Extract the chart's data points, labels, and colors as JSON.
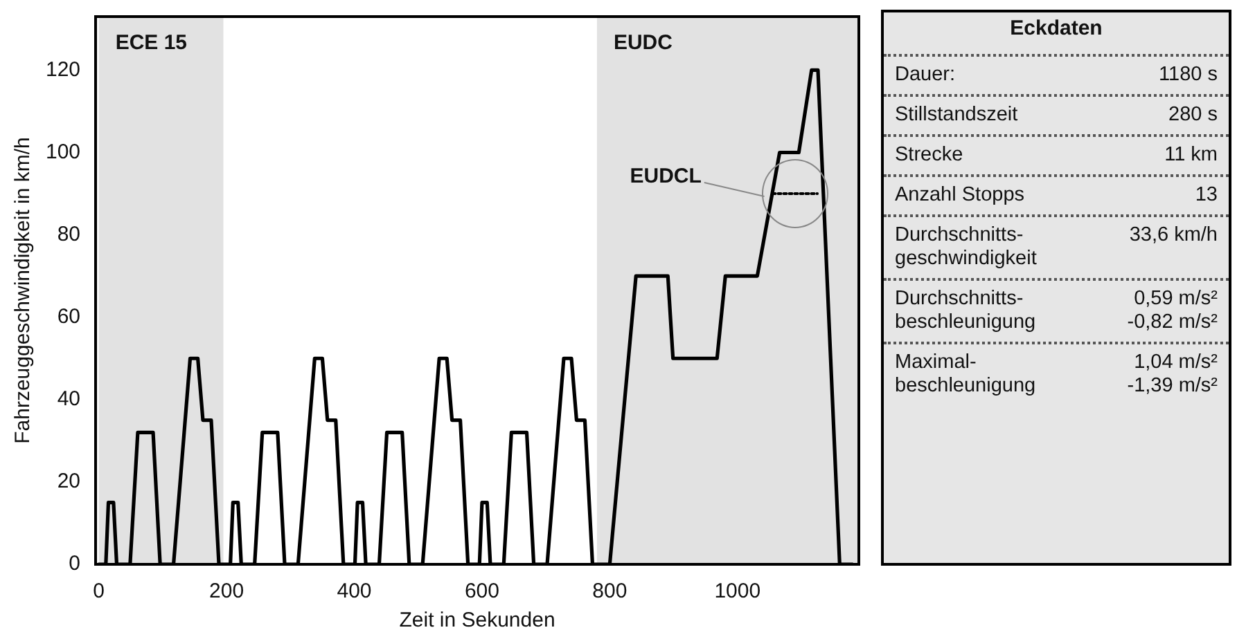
{
  "chart_data": [
    {
      "type": "line",
      "xlabel": "Zeit in Sekunden",
      "ylabel": "Fahrzeuggeschwindigkeit in km/h",
      "xlim": [
        -5,
        1190
      ],
      "xticks": [
        0,
        200,
        400,
        600,
        800,
        1000
      ],
      "ylim": [
        0,
        133
      ],
      "yticks": [
        0,
        20,
        40,
        60,
        80,
        100,
        120
      ],
      "legend": false,
      "marker": "none",
      "bands": [
        {
          "axis": "x",
          "from": 0,
          "to": 195,
          "label": "ECE 15",
          "color": "#e2e2e2"
        },
        {
          "axis": "x",
          "from": 780,
          "to": 1190,
          "label": "EUDC",
          "color": "#e2e2e2"
        }
      ],
      "series": [
        {
          "color": "#000000",
          "line_style": "solid",
          "x": [
            0,
            11,
            15,
            23,
            28,
            49,
            61,
            85,
            96,
            117,
            143,
            155,
            163,
            176,
            188,
            195,
            206,
            210,
            218,
            223,
            244,
            256,
            280,
            291,
            312,
            338,
            350,
            358,
            371,
            383,
            390,
            401,
            405,
            413,
            418,
            439,
            451,
            475,
            486,
            507,
            533,
            545,
            553,
            566,
            578,
            585,
            596,
            600,
            608,
            613,
            634,
            646,
            670,
            681,
            702,
            728,
            740,
            748,
            761,
            773,
            780,
            800,
            841,
            891,
            899,
            968,
            981,
            1031,
            1066,
            1096,
            1116,
            1126,
            1160,
            1180
          ],
          "values": [
            0,
            0,
            15,
            15,
            0,
            0,
            32,
            32,
            0,
            0,
            50,
            50,
            35,
            35,
            0,
            0,
            0,
            15,
            15,
            0,
            0,
            32,
            32,
            0,
            0,
            50,
            50,
            35,
            35,
            0,
            0,
            0,
            15,
            15,
            0,
            0,
            32,
            32,
            0,
            0,
            50,
            50,
            35,
            35,
            0,
            0,
            0,
            15,
            15,
            0,
            0,
            32,
            32,
            0,
            0,
            50,
            50,
            35,
            35,
            0,
            0,
            0,
            70,
            70,
            50,
            50,
            70,
            70,
            100,
            100,
            120,
            120,
            0,
            0
          ]
        },
        {
          "name": "EUDCL",
          "color": "#000000",
          "line_style": "dotted",
          "x": [
            1055,
            1125
          ],
          "values": [
            90,
            90
          ]
        }
      ]
    },
    {
      "type": "other",
      "title": "Eckdaten",
      "annotations": [
        "Dauer:",
        "1180 s",
        "Stillstandszeit",
        "280 s",
        "Strecke",
        "11 km",
        "Anzahl Stopps",
        "13",
        "Durchschnitts-\ngeschwindigkeit",
        "33,6 km/h",
        "Durchschnitts-\nbeschleunigung",
        "0,59 m/s²\n-0,82 m/s²",
        "Maximal-\nbeschleunigung",
        "1,04 m/s²\n-1,39 m/s²"
      ]
    }
  ]
}
